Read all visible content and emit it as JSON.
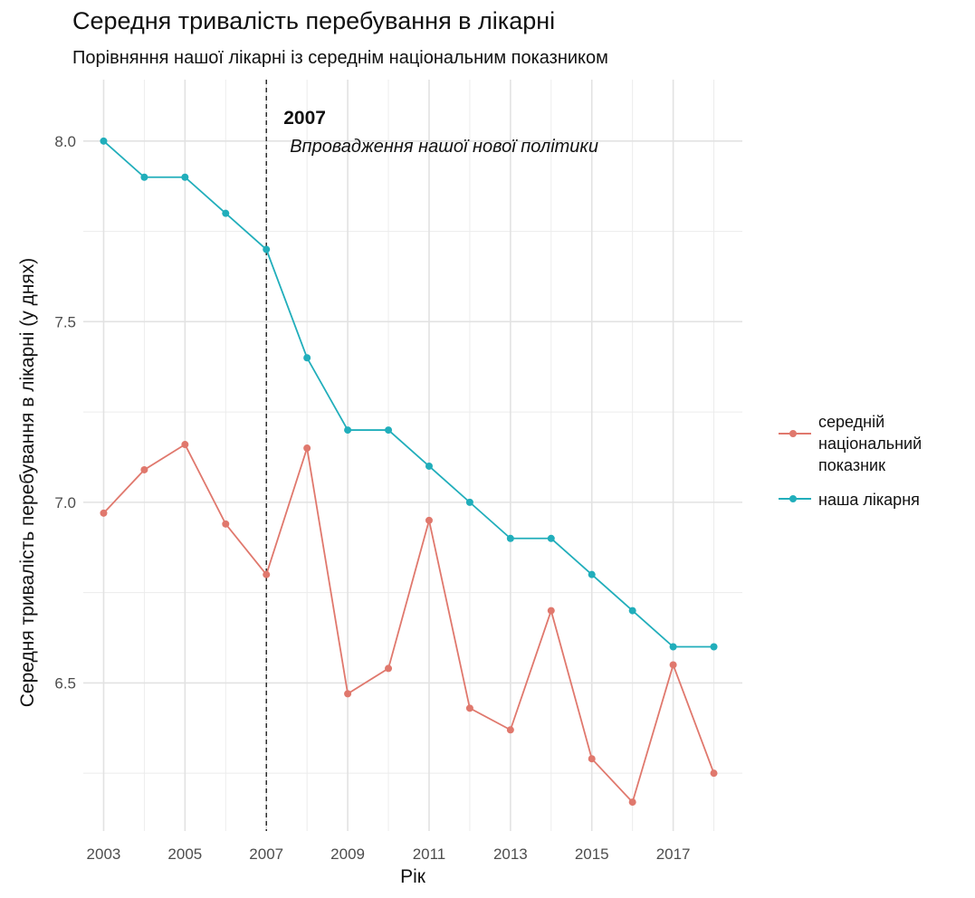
{
  "chart_data": {
    "type": "line",
    "title": "Середня тривалість перебування в лікарні",
    "subtitle": "Порівняння нашої лікарні із середнім національним показником",
    "xlabel": "Рік",
    "ylabel": "Середня тривалість перебування в лікарні (у днях)",
    "x": [
      2003,
      2004,
      2005,
      2006,
      2007,
      2008,
      2009,
      2010,
      2011,
      2012,
      2013,
      2014,
      2015,
      2016,
      2017,
      2018
    ],
    "x_ticks": [
      "2003",
      "2005",
      "2007",
      "2009",
      "2011",
      "2013",
      "2015",
      "2017"
    ],
    "y_ticks": [
      "6.5",
      "7.0",
      "7.5",
      "8.0"
    ],
    "xlim": [
      2002.5,
      2018.7
    ],
    "ylim": [
      6.09,
      8.17
    ],
    "grid": true,
    "legend_position": "right",
    "series": [
      {
        "name": "середній національний показник",
        "color": "#e0786d",
        "values": [
          6.97,
          7.09,
          7.16,
          6.94,
          6.8,
          7.15,
          6.47,
          6.54,
          6.95,
          6.43,
          6.37,
          6.7,
          6.29,
          6.17,
          6.55,
          6.25
        ]
      },
      {
        "name": "наша лікарня",
        "color": "#21aebb",
        "values": [
          8.0,
          7.9,
          7.9,
          7.8,
          7.7,
          7.4,
          7.2,
          7.2,
          7.1,
          7.0,
          6.9,
          6.9,
          6.8,
          6.7,
          6.6,
          6.6
        ]
      }
    ],
    "annotation": {
      "x": 2007,
      "year_label": "2007",
      "text": "Впровадження нашої нової політики"
    }
  }
}
